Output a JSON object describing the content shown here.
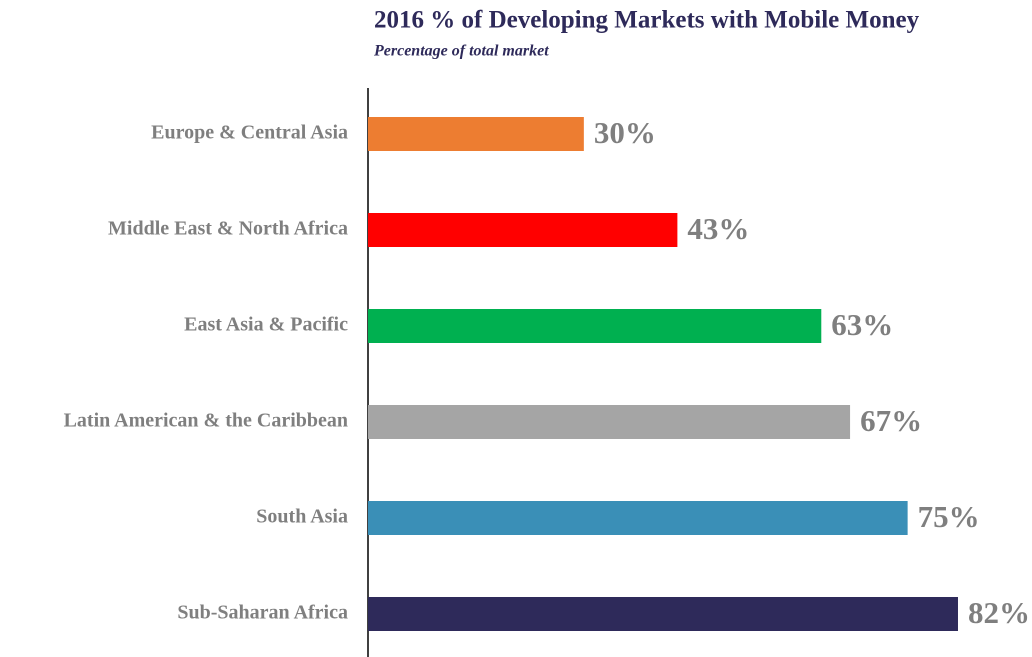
{
  "chart_data": {
    "type": "bar",
    "orientation": "horizontal",
    "title": "2016 % of Developing Markets with Mobile Money",
    "subtitle": "Percentage of total market",
    "categories": [
      "Europe & Central Asia",
      "Middle East & North Africa",
      "East Asia & Pacific",
      "Latin American & the Caribbean",
      "South Asia",
      "Sub-Saharan Africa"
    ],
    "values": [
      30,
      43,
      63,
      67,
      75,
      82
    ],
    "value_labels": [
      "30%",
      "43%",
      "63%",
      "67%",
      "75%",
      "82%"
    ],
    "colors": [
      "#ed7d31",
      "#ff0000",
      "#00b050",
      "#a5a5a5",
      "#3a8fb7",
      "#2e2a5a"
    ],
    "xlim": [
      0,
      100
    ]
  }
}
